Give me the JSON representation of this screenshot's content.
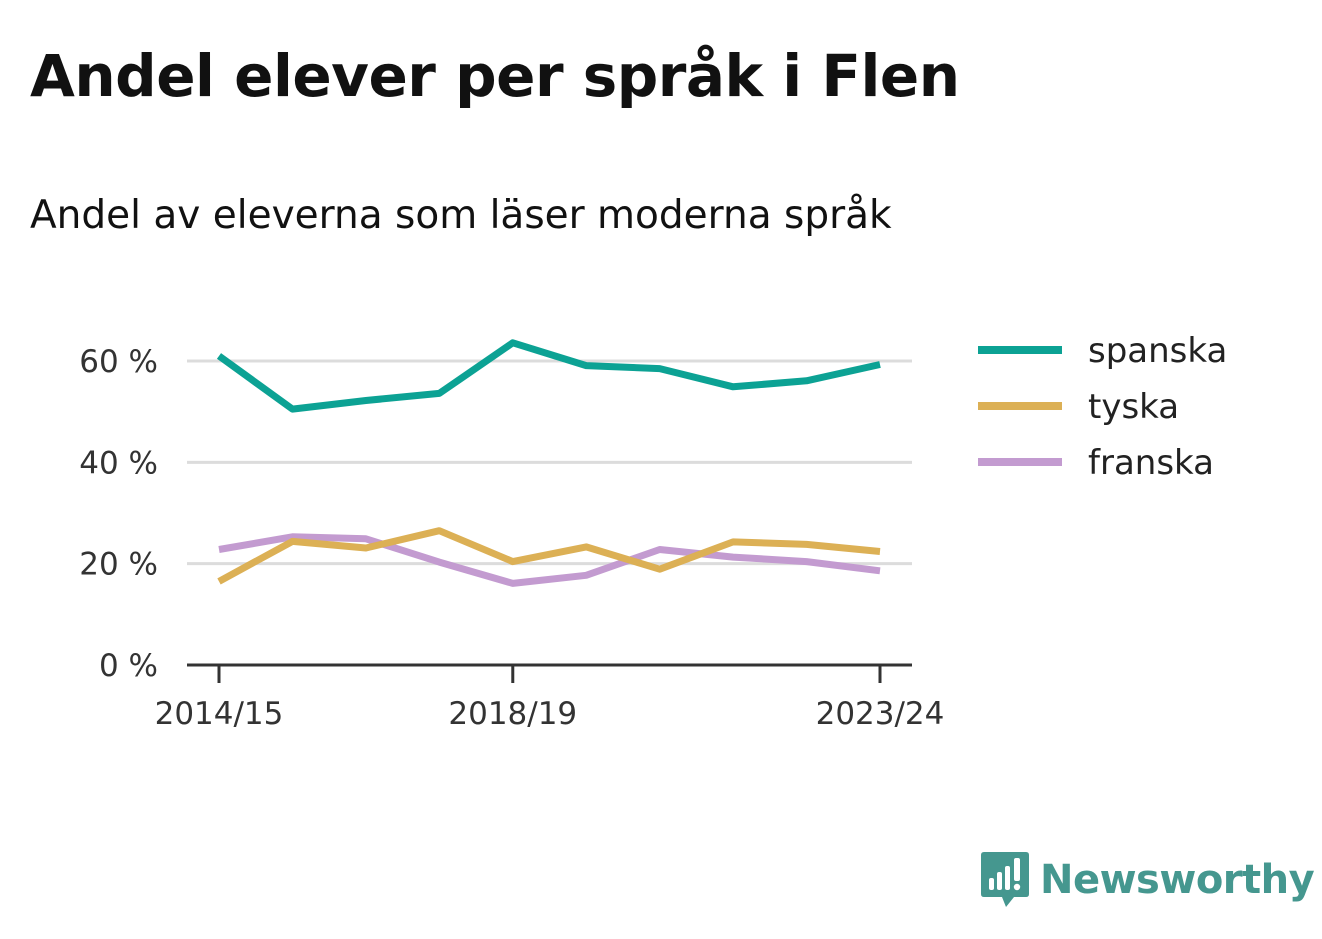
{
  "title": "Andel elever per språk i Flen",
  "subtitle": "Andel av eleverna som läser moderna språk",
  "brand": {
    "name": "Newsworthy",
    "icon": "newsworthy-logo-icon",
    "color": "#45978f"
  },
  "chart_data": {
    "type": "line",
    "x": [
      "2014/15",
      "2015/16",
      "2016/17",
      "2017/18",
      "2018/19",
      "2019/20",
      "2020/21",
      "2021/22",
      "2022/23",
      "2023/24"
    ],
    "x_tick_labels": [
      "2014/15",
      "2018/19",
      "2023/24"
    ],
    "y_ticks": [
      0,
      20,
      40,
      60
    ],
    "y_tick_labels": [
      "0 %",
      "20 %",
      "40 %",
      "60 %"
    ],
    "ylim": [
      0,
      65
    ],
    "grid": true,
    "legend": "right",
    "series": [
      {
        "name": "spanska",
        "color": "#0ca294",
        "values": [
          61,
          50.5,
          52.2,
          53.6,
          63.6,
          59.1,
          58.5,
          54.9,
          56.1,
          59.3
        ]
      },
      {
        "name": "tyska",
        "color": "#dcb055",
        "values": [
          16.5,
          24.4,
          23.1,
          26.5,
          20.4,
          23.3,
          18.9,
          24.3,
          23.8,
          22.4
        ]
      },
      {
        "name": "franska",
        "color": "#c39bd0",
        "values": [
          22.8,
          25.3,
          24.9,
          20.3,
          16.1,
          17.7,
          22.8,
          21.3,
          20.4,
          18.6
        ]
      }
    ]
  }
}
